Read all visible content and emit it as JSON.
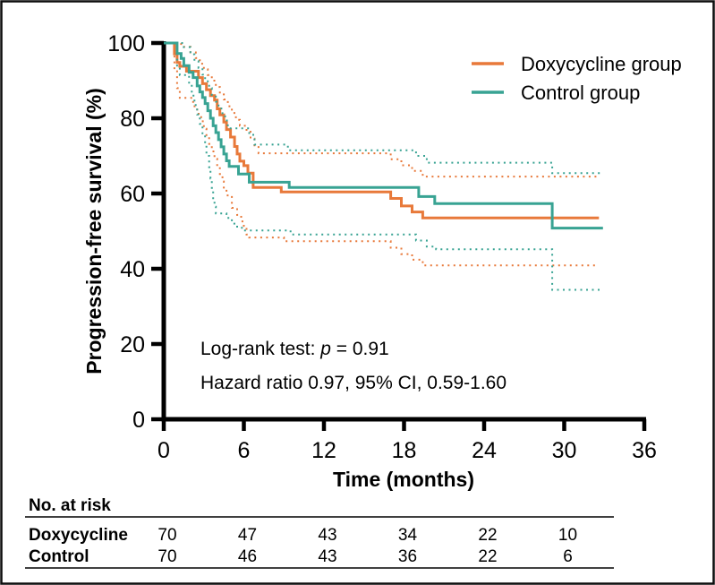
{
  "figure": {
    "y_axis_title": "Progression-free survival (%)",
    "x_axis_title": "Time (months)"
  },
  "legend": [
    {
      "label": "Doxycycline group",
      "color": "#E8793A"
    },
    {
      "label": "Control group",
      "color": "#38A393"
    }
  ],
  "stats": {
    "logrank_prefix": "Log-rank test: ",
    "p_symbol": "p",
    "p_rest": " = 0.91",
    "hazard_line": "Hazard ratio 0.97, 95% CI, 0.59-1.60"
  },
  "risk_table": {
    "header": "No. at risk",
    "time_points": [
      0,
      6,
      12,
      18,
      24,
      30
    ],
    "rows": [
      {
        "label": "Doxycycline",
        "values": [
          70,
          47,
          43,
          34,
          22,
          10
        ]
      },
      {
        "label": "Control",
        "values": [
          70,
          46,
          43,
          36,
          22,
          6
        ]
      }
    ]
  },
  "chart_data": {
    "type": "line",
    "subtype": "kaplan-meier-step",
    "title": "",
    "xlabel": "Time (months)",
    "ylabel": "Progression-free survival (%)",
    "xlim": [
      0,
      36
    ],
    "ylim": [
      0,
      100
    ],
    "xticks": [
      0,
      6,
      12,
      18,
      24,
      30,
      36
    ],
    "yticks": [
      0,
      20,
      40,
      60,
      80,
      100
    ],
    "grid": false,
    "legend_position": "top-right",
    "annotations": [
      "Log-rank test: p = 0.91",
      "Hazard ratio 0.97, 95% CI, 0.59-1.60"
    ],
    "series": [
      {
        "name": "Doxycycline group",
        "color": "#E8793A",
        "style": "solid",
        "points": [
          [
            0,
            100
          ],
          [
            0.8,
            100
          ],
          [
            0.8,
            97.1
          ],
          [
            1.0,
            97.1
          ],
          [
            1.0,
            94.8
          ],
          [
            1.2,
            94.8
          ],
          [
            1.2,
            93.8
          ],
          [
            1.7,
            93.8
          ],
          [
            1.7,
            92.5
          ],
          [
            2.6,
            92.5
          ],
          [
            2.6,
            90.8
          ],
          [
            2.9,
            90.8
          ],
          [
            2.9,
            89.2
          ],
          [
            3.2,
            89.2
          ],
          [
            3.2,
            87.6
          ],
          [
            3.5,
            87.6
          ],
          [
            3.5,
            86.0
          ],
          [
            3.8,
            86.0
          ],
          [
            3.8,
            84.8
          ],
          [
            4.0,
            84.8
          ],
          [
            4.0,
            82.5
          ],
          [
            4.2,
            82.5
          ],
          [
            4.2,
            80.9
          ],
          [
            4.5,
            80.9
          ],
          [
            4.5,
            79.0
          ],
          [
            4.7,
            79.0
          ],
          [
            4.7,
            77.0
          ],
          [
            5.0,
            77.0
          ],
          [
            5.0,
            75.0
          ],
          [
            5.3,
            75.0
          ],
          [
            5.3,
            72.5
          ],
          [
            5.5,
            72.5
          ],
          [
            5.5,
            70.5
          ],
          [
            5.7,
            70.5
          ],
          [
            5.7,
            68.6
          ],
          [
            6.0,
            68.6
          ],
          [
            6.0,
            67.4
          ],
          [
            6.3,
            67.4
          ],
          [
            6.3,
            65.4
          ],
          [
            6.7,
            65.4
          ],
          [
            6.7,
            61.6
          ],
          [
            8.8,
            61.6
          ],
          [
            8.8,
            60.4
          ],
          [
            17.0,
            60.4
          ],
          [
            17.0,
            58.7
          ],
          [
            17.8,
            58.7
          ],
          [
            17.8,
            56.7
          ],
          [
            18.6,
            56.7
          ],
          [
            18.6,
            55.1
          ],
          [
            19.4,
            55.1
          ],
          [
            19.4,
            53.5
          ],
          [
            32.6,
            53.5
          ]
        ]
      },
      {
        "name": "Doxycycline 95% CI upper",
        "color": "#E8793A",
        "style": "dotted",
        "points": [
          [
            0,
            100
          ],
          [
            1.3,
            100
          ],
          [
            1.3,
            99.0
          ],
          [
            2.0,
            99.0
          ],
          [
            2.0,
            97.5
          ],
          [
            2.4,
            97.5
          ],
          [
            2.4,
            96.0
          ],
          [
            2.7,
            96.0
          ],
          [
            2.7,
            94.5
          ],
          [
            3.0,
            94.5
          ],
          [
            3.0,
            93.0
          ],
          [
            3.3,
            93.0
          ],
          [
            3.3,
            91.5
          ],
          [
            3.6,
            91.5
          ],
          [
            3.6,
            90.0
          ],
          [
            3.9,
            90.0
          ],
          [
            3.9,
            88.3
          ],
          [
            4.2,
            88.3
          ],
          [
            4.2,
            86.6
          ],
          [
            4.5,
            86.6
          ],
          [
            4.5,
            85.0
          ],
          [
            4.8,
            85.0
          ],
          [
            4.8,
            83.2
          ],
          [
            5.1,
            83.2
          ],
          [
            5.1,
            81.4
          ],
          [
            5.4,
            81.4
          ],
          [
            5.4,
            79.6
          ],
          [
            5.7,
            79.6
          ],
          [
            5.7,
            78.0
          ],
          [
            6.2,
            78.0
          ],
          [
            6.2,
            76.4
          ],
          [
            6.5,
            76.4
          ],
          [
            6.5,
            74.6
          ],
          [
            6.8,
            74.6
          ],
          [
            6.8,
            72.8
          ],
          [
            7.1,
            72.8
          ],
          [
            7.1,
            70.7
          ],
          [
            17.0,
            70.7
          ],
          [
            17.0,
            69.1
          ],
          [
            17.8,
            69.1
          ],
          [
            17.8,
            67.5
          ],
          [
            18.6,
            67.5
          ],
          [
            18.6,
            66.0
          ],
          [
            19.4,
            66.0
          ],
          [
            19.4,
            64.5
          ],
          [
            32.6,
            64.5
          ]
        ]
      },
      {
        "name": "Doxycycline 95% CI lower",
        "color": "#E8793A",
        "style": "dotted",
        "points": [
          [
            0,
            100
          ],
          [
            0.8,
            100
          ],
          [
            0.8,
            93.0
          ],
          [
            1.0,
            93.0
          ],
          [
            1.0,
            88.0
          ],
          [
            1.2,
            88.0
          ],
          [
            1.2,
            85.4
          ],
          [
            2.2,
            85.4
          ],
          [
            2.2,
            83.2
          ],
          [
            2.5,
            83.2
          ],
          [
            2.5,
            81.2
          ],
          [
            2.8,
            81.2
          ],
          [
            2.8,
            79.2
          ],
          [
            3.0,
            79.2
          ],
          [
            3.0,
            77.2
          ],
          [
            3.2,
            77.2
          ],
          [
            3.2,
            75.2
          ],
          [
            3.4,
            75.2
          ],
          [
            3.4,
            73.2
          ],
          [
            3.6,
            73.2
          ],
          [
            3.6,
            71.2
          ],
          [
            3.8,
            71.2
          ],
          [
            3.8,
            69.2
          ],
          [
            4.0,
            69.2
          ],
          [
            4.0,
            67.2
          ],
          [
            4.2,
            67.2
          ],
          [
            4.2,
            65.2
          ],
          [
            4.4,
            65.2
          ],
          [
            4.4,
            63.2
          ],
          [
            4.5,
            63.2
          ],
          [
            4.5,
            61.2
          ],
          [
            4.7,
            61.2
          ],
          [
            4.7,
            59.5
          ],
          [
            5.1,
            59.5
          ],
          [
            5.1,
            56.2
          ],
          [
            5.5,
            56.2
          ],
          [
            5.5,
            54.3
          ],
          [
            5.8,
            54.3
          ],
          [
            5.8,
            52.6
          ],
          [
            6.0,
            52.6
          ],
          [
            6.0,
            51.4
          ],
          [
            6.2,
            51.4
          ],
          [
            6.2,
            49.1
          ],
          [
            6.4,
            49.1
          ],
          [
            6.4,
            48.3
          ],
          [
            9.0,
            48.3
          ],
          [
            9.0,
            47.3
          ],
          [
            17.0,
            47.3
          ],
          [
            17.0,
            45.6
          ],
          [
            17.8,
            45.6
          ],
          [
            17.8,
            43.9
          ],
          [
            18.6,
            43.9
          ],
          [
            18.6,
            42.4
          ],
          [
            19.4,
            42.4
          ],
          [
            19.4,
            40.9
          ],
          [
            32.6,
            40.9
          ]
        ]
      },
      {
        "name": "Control group",
        "color": "#38A393",
        "style": "solid",
        "points": [
          [
            0,
            100
          ],
          [
            1.0,
            100
          ],
          [
            1.0,
            97.2
          ],
          [
            1.3,
            97.2
          ],
          [
            1.3,
            95.9
          ],
          [
            1.5,
            95.9
          ],
          [
            1.5,
            94.0
          ],
          [
            1.9,
            94.0
          ],
          [
            1.9,
            92.2
          ],
          [
            2.2,
            92.2
          ],
          [
            2.2,
            90.8
          ],
          [
            2.5,
            90.8
          ],
          [
            2.5,
            88.6
          ],
          [
            2.7,
            88.6
          ],
          [
            2.7,
            87.0
          ],
          [
            2.9,
            87.0
          ],
          [
            2.9,
            85.5
          ],
          [
            3.1,
            85.5
          ],
          [
            3.1,
            83.9
          ],
          [
            3.3,
            83.9
          ],
          [
            3.3,
            82.0
          ],
          [
            3.5,
            82.0
          ],
          [
            3.5,
            80.0
          ],
          [
            3.7,
            80.0
          ],
          [
            3.7,
            78.0
          ],
          [
            3.9,
            78.0
          ],
          [
            3.9,
            76.2
          ],
          [
            4.1,
            76.2
          ],
          [
            4.1,
            74.3
          ],
          [
            4.3,
            74.3
          ],
          [
            4.3,
            72.4
          ],
          [
            4.5,
            72.4
          ],
          [
            4.5,
            70.5
          ],
          [
            4.7,
            70.5
          ],
          [
            4.7,
            68.7
          ],
          [
            4.9,
            68.7
          ],
          [
            4.9,
            67.2
          ],
          [
            5.6,
            67.2
          ],
          [
            5.6,
            65.2
          ],
          [
            6.4,
            65.2
          ],
          [
            6.4,
            63.0
          ],
          [
            9.4,
            63.0
          ],
          [
            9.4,
            61.6
          ],
          [
            19.1,
            61.6
          ],
          [
            19.1,
            59.2
          ],
          [
            20.3,
            59.2
          ],
          [
            20.3,
            57.3
          ],
          [
            29.1,
            57.3
          ],
          [
            29.1,
            50.8
          ],
          [
            32.9,
            50.8
          ]
        ]
      },
      {
        "name": "Control 95% CI upper",
        "color": "#38A393",
        "style": "dotted",
        "points": [
          [
            0,
            100
          ],
          [
            1.5,
            100
          ],
          [
            1.5,
            98.9
          ],
          [
            2.0,
            98.9
          ],
          [
            2.0,
            97.0
          ],
          [
            2.3,
            97.0
          ],
          [
            2.3,
            95.2
          ],
          [
            2.6,
            95.2
          ],
          [
            2.6,
            93.4
          ],
          [
            2.9,
            93.4
          ],
          [
            2.9,
            91.6
          ],
          [
            3.1,
            91.6
          ],
          [
            3.1,
            89.8
          ],
          [
            3.4,
            89.8
          ],
          [
            3.4,
            88.0
          ],
          [
            3.6,
            88.0
          ],
          [
            3.6,
            86.2
          ],
          [
            3.9,
            86.2
          ],
          [
            3.9,
            84.4
          ],
          [
            4.1,
            84.4
          ],
          [
            4.1,
            82.6
          ],
          [
            4.4,
            82.6
          ],
          [
            4.4,
            81.0
          ],
          [
            4.6,
            81.0
          ],
          [
            4.6,
            79.4
          ],
          [
            4.8,
            79.4
          ],
          [
            4.8,
            77.3
          ],
          [
            6.4,
            77.3
          ],
          [
            6.4,
            75.6
          ],
          [
            6.8,
            75.6
          ],
          [
            6.8,
            73.0
          ],
          [
            9.3,
            73.0
          ],
          [
            9.3,
            71.5
          ],
          [
            18.9,
            71.5
          ],
          [
            18.9,
            70.0
          ],
          [
            19.7,
            70.0
          ],
          [
            19.7,
            68.2
          ],
          [
            29.1,
            68.2
          ],
          [
            29.1,
            65.4
          ],
          [
            32.9,
            65.4
          ]
        ]
      },
      {
        "name": "Control 95% CI lower",
        "color": "#38A393",
        "style": "dotted",
        "points": [
          [
            0,
            100
          ],
          [
            1.0,
            100
          ],
          [
            1.0,
            94.0
          ],
          [
            1.2,
            94.0
          ],
          [
            1.2,
            91.5
          ],
          [
            1.9,
            91.5
          ],
          [
            1.9,
            89.0
          ],
          [
            2.1,
            89.0
          ],
          [
            2.1,
            86.0
          ],
          [
            2.3,
            86.0
          ],
          [
            2.3,
            83.5
          ],
          [
            2.5,
            83.5
          ],
          [
            2.5,
            81.0
          ],
          [
            2.7,
            81.0
          ],
          [
            2.7,
            78.5
          ],
          [
            2.9,
            78.5
          ],
          [
            2.9,
            76.0
          ],
          [
            3.1,
            76.0
          ],
          [
            3.1,
            73.0
          ],
          [
            3.2,
            73.0
          ],
          [
            3.2,
            70.0
          ],
          [
            3.4,
            70.0
          ],
          [
            3.4,
            67.0
          ],
          [
            3.5,
            67.0
          ],
          [
            3.5,
            64.0
          ],
          [
            3.6,
            64.0
          ],
          [
            3.6,
            61.5
          ],
          [
            3.7,
            61.5
          ],
          [
            3.7,
            58.5
          ],
          [
            3.8,
            58.5
          ],
          [
            3.8,
            56.5
          ],
          [
            3.9,
            56.5
          ],
          [
            3.9,
            54.7
          ],
          [
            4.7,
            54.7
          ],
          [
            4.7,
            53.5
          ],
          [
            5.1,
            53.5
          ],
          [
            5.1,
            52.0
          ],
          [
            5.5,
            52.0
          ],
          [
            5.5,
            50.9
          ],
          [
            6.0,
            50.9
          ],
          [
            6.0,
            50.2
          ],
          [
            9.5,
            50.2
          ],
          [
            9.5,
            49.1
          ],
          [
            18.9,
            49.1
          ],
          [
            18.9,
            47.5
          ],
          [
            19.7,
            47.5
          ],
          [
            19.7,
            45.9
          ],
          [
            20.4,
            45.9
          ],
          [
            20.4,
            45.2
          ],
          [
            29.1,
            45.2
          ],
          [
            29.1,
            34.4
          ],
          [
            32.9,
            34.4
          ]
        ]
      }
    ]
  }
}
